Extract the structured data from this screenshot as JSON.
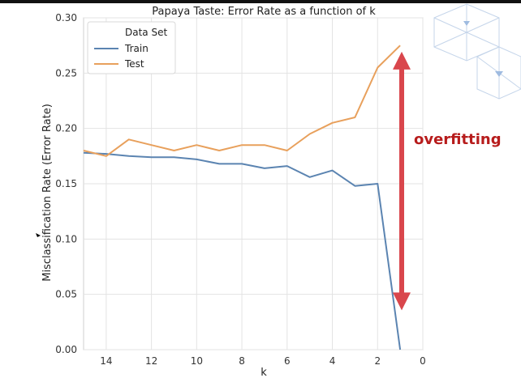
{
  "chart_data": {
    "type": "line",
    "title": "Papaya Taste: Error Rate as a function of k",
    "xlabel": "k",
    "ylabel": "Misclassification Rate (Error Rate)",
    "xlim": [
      15,
      0
    ],
    "ylim": [
      0,
      0.3
    ],
    "x_inverted": true,
    "x_ticks": [
      "14",
      "12",
      "10",
      "8",
      "6",
      "4",
      "2",
      "0"
    ],
    "y_ticks": [
      "0.00",
      "0.05",
      "0.10",
      "0.15",
      "0.20",
      "0.25",
      "0.30"
    ],
    "grid": true,
    "legend": {
      "title": "Data Set",
      "placement": "top-left"
    },
    "x": [
      15,
      14,
      13,
      12,
      11,
      10,
      9,
      8,
      7,
      6,
      5,
      4,
      3,
      2,
      1
    ],
    "series": [
      {
        "name": "Train",
        "color": "#5b84b1",
        "values": [
          0.178,
          0.177,
          0.175,
          0.174,
          0.174,
          0.172,
          0.168,
          0.168,
          0.164,
          0.166,
          0.156,
          0.162,
          0.148,
          0.15,
          0.0
        ]
      },
      {
        "name": "Test",
        "color": "#e8a05c",
        "values": [
          0.18,
          0.175,
          0.19,
          0.185,
          0.18,
          0.185,
          0.18,
          0.185,
          0.185,
          0.18,
          0.195,
          0.205,
          0.21,
          0.255,
          0.275
        ]
      }
    ],
    "annotation": {
      "text": "overfitting",
      "color": "#b71c1c",
      "arrow_color": "#d9464c",
      "arrow_x": 0,
      "arrow_y_top": 0.265,
      "arrow_y_bottom": 0.04
    }
  }
}
